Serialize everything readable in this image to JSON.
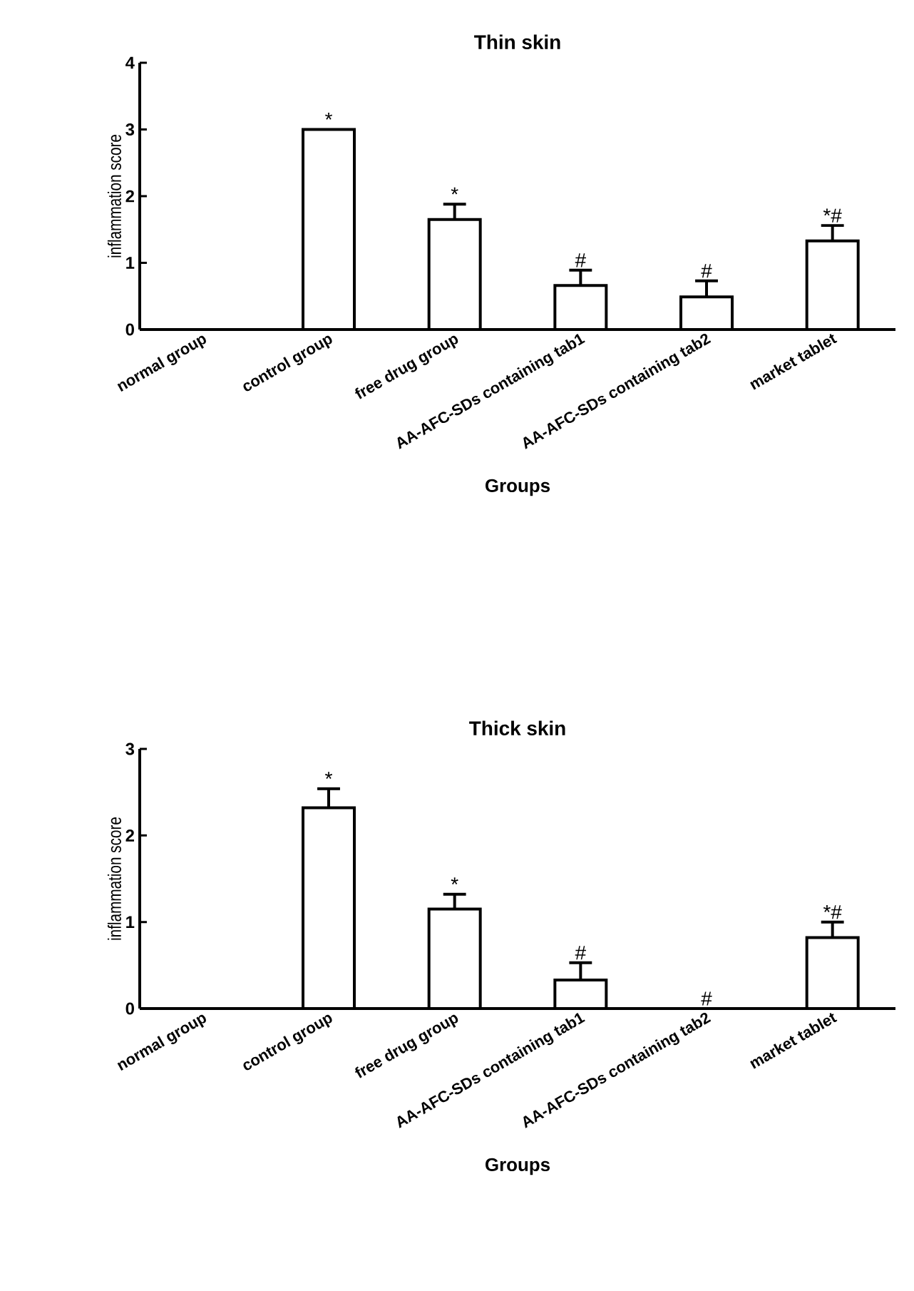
{
  "chart_data": [
    {
      "type": "bar",
      "title": "Thin skin",
      "xlabel": "Groups",
      "ylabel": "inflammation score",
      "color": "#000000",
      "categories": [
        "normal group",
        "control group",
        "free drug group",
        "AA-AFC-SDs containing tab1",
        "AA-AFC-SDs containing tab2",
        "market tablet"
      ],
      "values": [
        0,
        3.0,
        1.65,
        0.66,
        0.49,
        1.33
      ],
      "errors": [
        null,
        null,
        0.23,
        0.23,
        0.24,
        0.23
      ],
      "ylim": [
        0,
        4
      ],
      "yticks": [
        0,
        1,
        2,
        3,
        4
      ],
      "annotations": [
        {
          "text": "*",
          "x": "control group",
          "y": 3.0
        },
        {
          "text": "*",
          "x": "free drug group",
          "y": 1.88
        },
        {
          "text": "#",
          "x": "AA-AFC-SDs containing tab1",
          "y": 0.89
        },
        {
          "text": "#",
          "x": "AA-AFC-SDs containing tab2",
          "y": 0.73
        },
        {
          "text": "*#",
          "x": "market tablet",
          "y": 1.56
        }
      ]
    },
    {
      "type": "bar",
      "title": "Thick skin",
      "xlabel": "Groups",
      "ylabel": "inflammation score",
      "color": "#000000",
      "categories": [
        "normal group",
        "control group",
        "free drug group",
        "AA-AFC-SDs containing tab1",
        "AA-AFC-SDs containing tab2",
        "market tablet"
      ],
      "values": [
        0,
        2.32,
        1.15,
        0.33,
        0,
        0.82
      ],
      "errors": [
        null,
        0.22,
        0.17,
        0.2,
        null,
        0.18
      ],
      "ylim": [
        0,
        3
      ],
      "yticks": [
        0,
        1,
        2,
        3
      ],
      "annotations": [
        {
          "text": "*",
          "x": "control group",
          "y": 2.54
        },
        {
          "text": "*",
          "x": "free drug group",
          "y": 1.32
        },
        {
          "text": "#",
          "x": "AA-AFC-SDs containing tab1",
          "y": 0.53
        },
        {
          "text": "#",
          "x": "AA-AFC-SDs containing tab2",
          "y": 0
        },
        {
          "text": "*#",
          "x": "market tablet",
          "y": 1.0
        }
      ]
    }
  ]
}
